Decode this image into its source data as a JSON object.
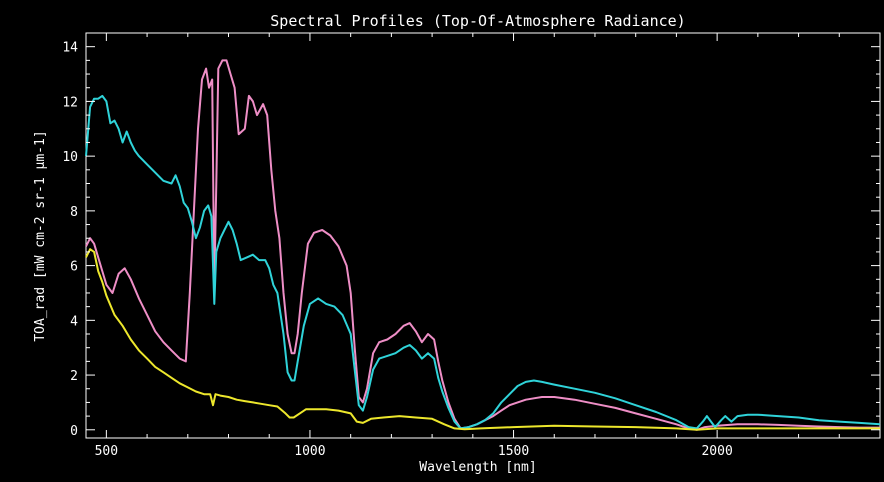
{
  "chart_data": {
    "type": "line",
    "title": "Spectral Profiles (Top-Of-Atmosphere Radiance)",
    "xlabel": "Wavelength [nm]",
    "ylabel": "TOA_rad [mW cm-2 sr-1 µm-1]",
    "xlim": [
      450,
      2400
    ],
    "ylim": [
      -0.3,
      14.5
    ],
    "xticks": [
      500,
      1000,
      1500,
      2000
    ],
    "yticks": [
      0,
      2,
      4,
      6,
      8,
      10,
      12,
      14
    ],
    "grid": false,
    "legend": "none",
    "background": "#000000",
    "axis_color": "#ffffff",
    "series": [
      {
        "color": "#ee8ec6",
        "points": [
          [
            450,
            6.7
          ],
          [
            460,
            7.0
          ],
          [
            470,
            6.8
          ],
          [
            480,
            6.3
          ],
          [
            490,
            5.8
          ],
          [
            500,
            5.3
          ],
          [
            515,
            5.0
          ],
          [
            530,
            5.7
          ],
          [
            545,
            5.9
          ],
          [
            560,
            5.5
          ],
          [
            580,
            4.8
          ],
          [
            600,
            4.2
          ],
          [
            620,
            3.6
          ],
          [
            640,
            3.2
          ],
          [
            660,
            2.9
          ],
          [
            680,
            2.6
          ],
          [
            695,
            2.5
          ],
          [
            705,
            5.0
          ],
          [
            715,
            8.0
          ],
          [
            725,
            11.0
          ],
          [
            735,
            12.8
          ],
          [
            745,
            13.2
          ],
          [
            752,
            12.5
          ],
          [
            760,
            12.8
          ],
          [
            765,
            5.2
          ],
          [
            770,
            9.0
          ],
          [
            775,
            13.2
          ],
          [
            785,
            13.5
          ],
          [
            795,
            13.5
          ],
          [
            805,
            13.0
          ],
          [
            815,
            12.5
          ],
          [
            825,
            10.8
          ],
          [
            840,
            11.0
          ],
          [
            850,
            12.2
          ],
          [
            860,
            12.0
          ],
          [
            870,
            11.5
          ],
          [
            885,
            11.9
          ],
          [
            895,
            11.5
          ],
          [
            905,
            9.5
          ],
          [
            915,
            8.0
          ],
          [
            925,
            7.0
          ],
          [
            935,
            5.0
          ],
          [
            945,
            3.5
          ],
          [
            955,
            2.8
          ],
          [
            962,
            2.8
          ],
          [
            970,
            3.5
          ],
          [
            980,
            5.0
          ],
          [
            995,
            6.8
          ],
          [
            1010,
            7.2
          ],
          [
            1030,
            7.3
          ],
          [
            1050,
            7.1
          ],
          [
            1070,
            6.7
          ],
          [
            1090,
            6.0
          ],
          [
            1100,
            5.0
          ],
          [
            1110,
            3.0
          ],
          [
            1120,
            1.2
          ],
          [
            1130,
            1.0
          ],
          [
            1140,
            1.5
          ],
          [
            1155,
            2.8
          ],
          [
            1170,
            3.2
          ],
          [
            1190,
            3.3
          ],
          [
            1210,
            3.5
          ],
          [
            1230,
            3.8
          ],
          [
            1245,
            3.9
          ],
          [
            1260,
            3.6
          ],
          [
            1275,
            3.2
          ],
          [
            1290,
            3.5
          ],
          [
            1305,
            3.3
          ],
          [
            1315,
            2.5
          ],
          [
            1325,
            1.8
          ],
          [
            1340,
            1.0
          ],
          [
            1355,
            0.4
          ],
          [
            1370,
            0.05
          ],
          [
            1390,
            0.1
          ],
          [
            1410,
            0.2
          ],
          [
            1430,
            0.35
          ],
          [
            1450,
            0.5
          ],
          [
            1470,
            0.7
          ],
          [
            1490,
            0.9
          ],
          [
            1510,
            1.0
          ],
          [
            1530,
            1.1
          ],
          [
            1550,
            1.15
          ],
          [
            1570,
            1.2
          ],
          [
            1600,
            1.2
          ],
          [
            1650,
            1.1
          ],
          [
            1700,
            0.95
          ],
          [
            1750,
            0.8
          ],
          [
            1800,
            0.6
          ],
          [
            1850,
            0.4
          ],
          [
            1900,
            0.2
          ],
          [
            1930,
            0.05
          ],
          [
            1950,
            0.0
          ],
          [
            1970,
            0.1
          ],
          [
            2000,
            0.15
          ],
          [
            2050,
            0.2
          ],
          [
            2100,
            0.2
          ],
          [
            2150,
            0.18
          ],
          [
            2200,
            0.15
          ],
          [
            2250,
            0.12
          ],
          [
            2300,
            0.1
          ],
          [
            2350,
            0.08
          ],
          [
            2400,
            0.08
          ]
        ]
      },
      {
        "color": "#2fd3d9",
        "points": [
          [
            450,
            10.0
          ],
          [
            460,
            11.8
          ],
          [
            470,
            12.1
          ],
          [
            480,
            12.1
          ],
          [
            490,
            12.2
          ],
          [
            500,
            12.0
          ],
          [
            510,
            11.2
          ],
          [
            520,
            11.3
          ],
          [
            530,
            11.0
          ],
          [
            540,
            10.5
          ],
          [
            550,
            10.9
          ],
          [
            560,
            10.5
          ],
          [
            570,
            10.2
          ],
          [
            580,
            10.0
          ],
          [
            600,
            9.7
          ],
          [
            620,
            9.4
          ],
          [
            640,
            9.1
          ],
          [
            660,
            9.0
          ],
          [
            670,
            9.3
          ],
          [
            680,
            8.9
          ],
          [
            690,
            8.3
          ],
          [
            700,
            8.1
          ],
          [
            710,
            7.6
          ],
          [
            720,
            7.0
          ],
          [
            730,
            7.4
          ],
          [
            740,
            8.0
          ],
          [
            750,
            8.2
          ],
          [
            758,
            7.8
          ],
          [
            765,
            4.6
          ],
          [
            770,
            6.5
          ],
          [
            780,
            7.0
          ],
          [
            790,
            7.3
          ],
          [
            800,
            7.6
          ],
          [
            810,
            7.3
          ],
          [
            820,
            6.8
          ],
          [
            830,
            6.2
          ],
          [
            845,
            6.3
          ],
          [
            860,
            6.4
          ],
          [
            875,
            6.2
          ],
          [
            890,
            6.2
          ],
          [
            900,
            5.9
          ],
          [
            910,
            5.3
          ],
          [
            920,
            5.0
          ],
          [
            935,
            3.5
          ],
          [
            945,
            2.1
          ],
          [
            955,
            1.8
          ],
          [
            962,
            1.8
          ],
          [
            970,
            2.5
          ],
          [
            985,
            3.8
          ],
          [
            1000,
            4.6
          ],
          [
            1020,
            4.8
          ],
          [
            1040,
            4.6
          ],
          [
            1060,
            4.5
          ],
          [
            1080,
            4.2
          ],
          [
            1100,
            3.5
          ],
          [
            1110,
            2.2
          ],
          [
            1120,
            0.9
          ],
          [
            1130,
            0.7
          ],
          [
            1140,
            1.2
          ],
          [
            1155,
            2.2
          ],
          [
            1170,
            2.6
          ],
          [
            1190,
            2.7
          ],
          [
            1210,
            2.8
          ],
          [
            1230,
            3.0
          ],
          [
            1245,
            3.1
          ],
          [
            1260,
            2.9
          ],
          [
            1275,
            2.6
          ],
          [
            1290,
            2.8
          ],
          [
            1305,
            2.6
          ],
          [
            1315,
            1.9
          ],
          [
            1325,
            1.4
          ],
          [
            1340,
            0.8
          ],
          [
            1355,
            0.3
          ],
          [
            1370,
            0.05
          ],
          [
            1390,
            0.1
          ],
          [
            1410,
            0.2
          ],
          [
            1430,
            0.35
          ],
          [
            1450,
            0.6
          ],
          [
            1470,
            1.0
          ],
          [
            1490,
            1.3
          ],
          [
            1510,
            1.6
          ],
          [
            1530,
            1.75
          ],
          [
            1550,
            1.8
          ],
          [
            1570,
            1.75
          ],
          [
            1600,
            1.65
          ],
          [
            1650,
            1.5
          ],
          [
            1700,
            1.35
          ],
          [
            1750,
            1.15
          ],
          [
            1800,
            0.9
          ],
          [
            1850,
            0.65
          ],
          [
            1900,
            0.35
          ],
          [
            1930,
            0.1
          ],
          [
            1950,
            0.05
          ],
          [
            1965,
            0.3
          ],
          [
            1975,
            0.5
          ],
          [
            1985,
            0.3
          ],
          [
            1995,
            0.1
          ],
          [
            2010,
            0.35
          ],
          [
            2020,
            0.5
          ],
          [
            2035,
            0.3
          ],
          [
            2050,
            0.5
          ],
          [
            2075,
            0.55
          ],
          [
            2100,
            0.55
          ],
          [
            2150,
            0.5
          ],
          [
            2200,
            0.45
          ],
          [
            2250,
            0.35
          ],
          [
            2300,
            0.3
          ],
          [
            2350,
            0.25
          ],
          [
            2400,
            0.2
          ]
        ]
      },
      {
        "color": "#ede72c",
        "points": [
          [
            450,
            6.3
          ],
          [
            460,
            6.6
          ],
          [
            470,
            6.5
          ],
          [
            480,
            5.8
          ],
          [
            490,
            5.4
          ],
          [
            500,
            4.9
          ],
          [
            520,
            4.2
          ],
          [
            540,
            3.8
          ],
          [
            560,
            3.3
          ],
          [
            580,
            2.9
          ],
          [
            600,
            2.6
          ],
          [
            620,
            2.3
          ],
          [
            640,
            2.1
          ],
          [
            660,
            1.9
          ],
          [
            680,
            1.7
          ],
          [
            700,
            1.55
          ],
          [
            720,
            1.4
          ],
          [
            740,
            1.3
          ],
          [
            755,
            1.3
          ],
          [
            762,
            0.9
          ],
          [
            768,
            1.3
          ],
          [
            780,
            1.25
          ],
          [
            800,
            1.2
          ],
          [
            820,
            1.1
          ],
          [
            840,
            1.05
          ],
          [
            860,
            1.0
          ],
          [
            880,
            0.95
          ],
          [
            900,
            0.9
          ],
          [
            920,
            0.85
          ],
          [
            940,
            0.6
          ],
          [
            950,
            0.45
          ],
          [
            960,
            0.45
          ],
          [
            975,
            0.6
          ],
          [
            990,
            0.75
          ],
          [
            1010,
            0.75
          ],
          [
            1040,
            0.75
          ],
          [
            1070,
            0.7
          ],
          [
            1100,
            0.6
          ],
          [
            1115,
            0.3
          ],
          [
            1130,
            0.25
          ],
          [
            1150,
            0.4
          ],
          [
            1180,
            0.45
          ],
          [
            1220,
            0.5
          ],
          [
            1260,
            0.45
          ],
          [
            1300,
            0.4
          ],
          [
            1330,
            0.2
          ],
          [
            1355,
            0.05
          ],
          [
            1380,
            0.02
          ],
          [
            1420,
            0.05
          ],
          [
            1500,
            0.1
          ],
          [
            1600,
            0.15
          ],
          [
            1700,
            0.12
          ],
          [
            1800,
            0.1
          ],
          [
            1900,
            0.05
          ],
          [
            1950,
            0.0
          ],
          [
            2000,
            0.05
          ],
          [
            2100,
            0.05
          ],
          [
            2200,
            0.05
          ],
          [
            2300,
            0.05
          ],
          [
            2400,
            0.05
          ]
        ]
      }
    ]
  }
}
